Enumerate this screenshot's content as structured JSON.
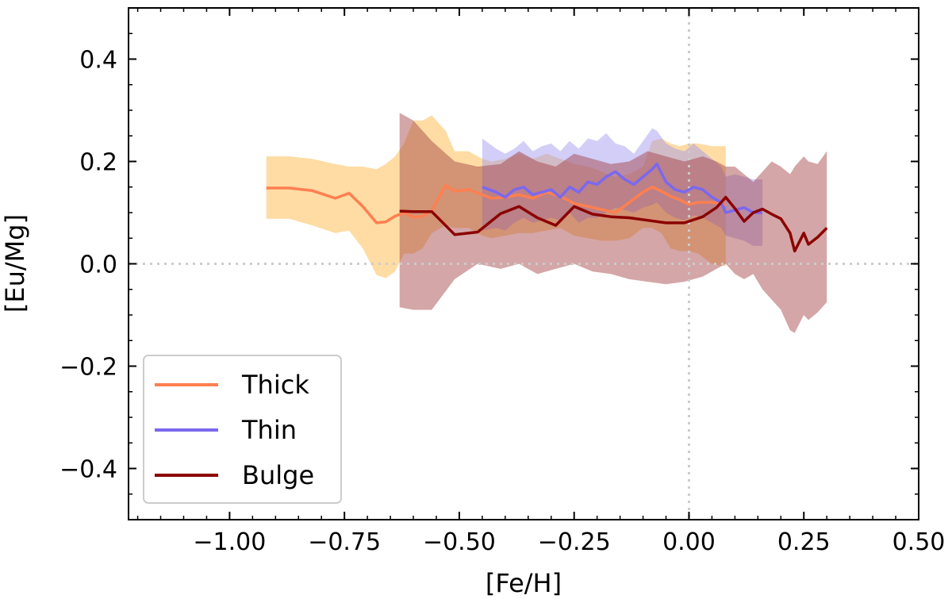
{
  "chart_data": {
    "type": "line",
    "xlabel": "[Fe/H]",
    "ylabel": "[Eu/Mg]",
    "xlim": [
      -1.22,
      0.5
    ],
    "ylim": [
      -0.5,
      0.5
    ],
    "x_ticks": [
      -1.0,
      -0.75,
      -0.5,
      -0.25,
      0.0,
      0.25,
      0.5
    ],
    "x_tick_labels": [
      "−1.00",
      "−0.75",
      "−0.50",
      "−0.25",
      "0.00",
      "0.25",
      "0.50"
    ],
    "y_ticks": [
      -0.4,
      -0.2,
      0.0,
      0.2,
      0.4
    ],
    "y_tick_labels": [
      "−0.4",
      "−0.2",
      "0.0",
      "0.2",
      "0.4"
    ],
    "reference_lines": {
      "x": 0.0,
      "y": 0.0,
      "style": "dotted",
      "color": "#cccccc"
    },
    "legend": {
      "position": "lower-left"
    },
    "series": [
      {
        "name": "Thick",
        "color": "#ff7f50",
        "band_color": "#fdb94a",
        "band_opacity": 0.5,
        "x": [
          -0.92,
          -0.87,
          -0.82,
          -0.77,
          -0.74,
          -0.71,
          -0.68,
          -0.66,
          -0.64,
          -0.62,
          -0.6,
          -0.58,
          -0.56,
          -0.53,
          -0.51,
          -0.48,
          -0.45,
          -0.43,
          -0.4,
          -0.37,
          -0.34,
          -0.31,
          -0.28,
          -0.25,
          -0.22,
          -0.19,
          -0.16,
          -0.13,
          -0.1,
          -0.08,
          -0.06,
          -0.04,
          -0.02,
          0.0,
          0.02,
          0.05,
          0.08
        ],
        "y": [
          0.148,
          0.148,
          0.143,
          0.128,
          0.138,
          0.112,
          0.08,
          0.082,
          0.093,
          0.1,
          0.091,
          0.093,
          0.104,
          0.153,
          0.142,
          0.145,
          0.135,
          0.128,
          0.13,
          0.135,
          0.128,
          0.14,
          0.132,
          0.118,
          0.112,
          0.106,
          0.1,
          0.12,
          0.14,
          0.15,
          0.142,
          0.132,
          0.125,
          0.116,
          0.12,
          0.12,
          0.116
        ],
        "lower": [
          0.088,
          0.088,
          0.075,
          0.06,
          0.065,
          0.03,
          -0.022,
          -0.028,
          -0.015,
          0.02,
          0.02,
          0.03,
          0.06,
          0.075,
          0.07,
          0.07,
          0.055,
          0.05,
          0.055,
          0.06,
          0.06,
          0.065,
          0.07,
          0.055,
          0.05,
          0.045,
          0.045,
          0.05,
          0.07,
          0.07,
          0.06,
          0.03,
          0.025,
          0.025,
          0.02,
          0.0,
          -0.005
        ],
        "upper": [
          0.21,
          0.21,
          0.205,
          0.195,
          0.19,
          0.19,
          0.185,
          0.195,
          0.21,
          0.235,
          0.28,
          0.28,
          0.29,
          0.26,
          0.22,
          0.22,
          0.205,
          0.2,
          0.205,
          0.215,
          0.205,
          0.215,
          0.205,
          0.195,
          0.19,
          0.18,
          0.17,
          0.175,
          0.19,
          0.24,
          0.245,
          0.235,
          0.23,
          0.235,
          0.235,
          0.23,
          0.23
        ]
      },
      {
        "name": "Thin",
        "color": "#7b68ee",
        "band_color": "#9b93f0",
        "band_opacity": 0.45,
        "x": [
          -0.45,
          -0.42,
          -0.4,
          -0.38,
          -0.36,
          -0.34,
          -0.32,
          -0.3,
          -0.28,
          -0.26,
          -0.24,
          -0.22,
          -0.2,
          -0.18,
          -0.16,
          -0.14,
          -0.12,
          -0.1,
          -0.08,
          -0.07,
          -0.05,
          -0.03,
          -0.01,
          0.01,
          0.03,
          0.05,
          0.07,
          0.08,
          0.1,
          0.12,
          0.14,
          0.16
        ],
        "y": [
          0.15,
          0.14,
          0.13,
          0.145,
          0.15,
          0.135,
          0.14,
          0.145,
          0.13,
          0.15,
          0.14,
          0.16,
          0.155,
          0.17,
          0.18,
          0.165,
          0.155,
          0.17,
          0.185,
          0.195,
          0.16,
          0.145,
          0.14,
          0.15,
          0.145,
          0.13,
          0.12,
          0.1,
          0.105,
          0.11,
          0.1,
          0.1
        ],
        "lower": [
          0.065,
          0.07,
          0.065,
          0.08,
          0.09,
          0.08,
          0.085,
          0.09,
          0.085,
          0.1,
          0.08,
          0.09,
          0.09,
          0.1,
          0.11,
          0.105,
          0.1,
          0.11,
          0.115,
          0.12,
          0.1,
          0.09,
          0.085,
          0.095,
          0.09,
          0.08,
          0.07,
          0.055,
          0.05,
          0.045,
          0.035,
          0.035
        ],
        "upper": [
          0.245,
          0.225,
          0.215,
          0.225,
          0.24,
          0.22,
          0.23,
          0.235,
          0.22,
          0.24,
          0.225,
          0.245,
          0.24,
          0.255,
          0.235,
          0.23,
          0.215,
          0.24,
          0.265,
          0.26,
          0.235,
          0.225,
          0.22,
          0.235,
          0.22,
          0.205,
          0.19,
          0.17,
          0.175,
          0.17,
          0.165,
          0.165
        ]
      },
      {
        "name": "Bulge",
        "color": "#8b0000",
        "band_color": "#a0393c",
        "band_opacity": 0.45,
        "x": [
          -0.63,
          -0.6,
          -0.56,
          -0.51,
          -0.46,
          -0.41,
          -0.37,
          -0.33,
          -0.29,
          -0.25,
          -0.21,
          -0.17,
          -0.13,
          -0.09,
          -0.05,
          -0.01,
          0.03,
          0.06,
          0.08,
          0.1,
          0.12,
          0.14,
          0.16,
          0.18,
          0.2,
          0.22,
          0.23,
          0.25,
          0.26,
          0.28,
          0.3
        ],
        "y": [
          0.103,
          0.102,
          0.102,
          0.057,
          0.062,
          0.098,
          0.112,
          0.09,
          0.075,
          0.112,
          0.097,
          0.092,
          0.09,
          0.085,
          0.08,
          0.08,
          0.092,
          0.11,
          0.13,
          0.108,
          0.083,
          0.1,
          0.107,
          0.097,
          0.088,
          0.06,
          0.025,
          0.06,
          0.038,
          0.052,
          0.07
        ],
        "lower": [
          -0.085,
          -0.09,
          -0.09,
          -0.03,
          0.0,
          -0.01,
          0.0,
          -0.02,
          -0.01,
          0.0,
          -0.015,
          -0.02,
          -0.03,
          -0.035,
          -0.04,
          -0.035,
          -0.025,
          -0.01,
          0.0,
          -0.02,
          -0.03,
          -0.02,
          -0.05,
          -0.07,
          -0.09,
          -0.13,
          -0.135,
          -0.1,
          -0.11,
          -0.095,
          -0.075
        ],
        "upper": [
          0.295,
          0.28,
          0.24,
          0.2,
          0.19,
          0.195,
          0.22,
          0.2,
          0.19,
          0.215,
          0.205,
          0.195,
          0.2,
          0.22,
          0.21,
          0.2,
          0.21,
          0.2,
          0.19,
          0.19,
          0.175,
          0.16,
          0.18,
          0.2,
          0.19,
          0.175,
          0.19,
          0.21,
          0.2,
          0.195,
          0.22
        ]
      }
    ]
  }
}
